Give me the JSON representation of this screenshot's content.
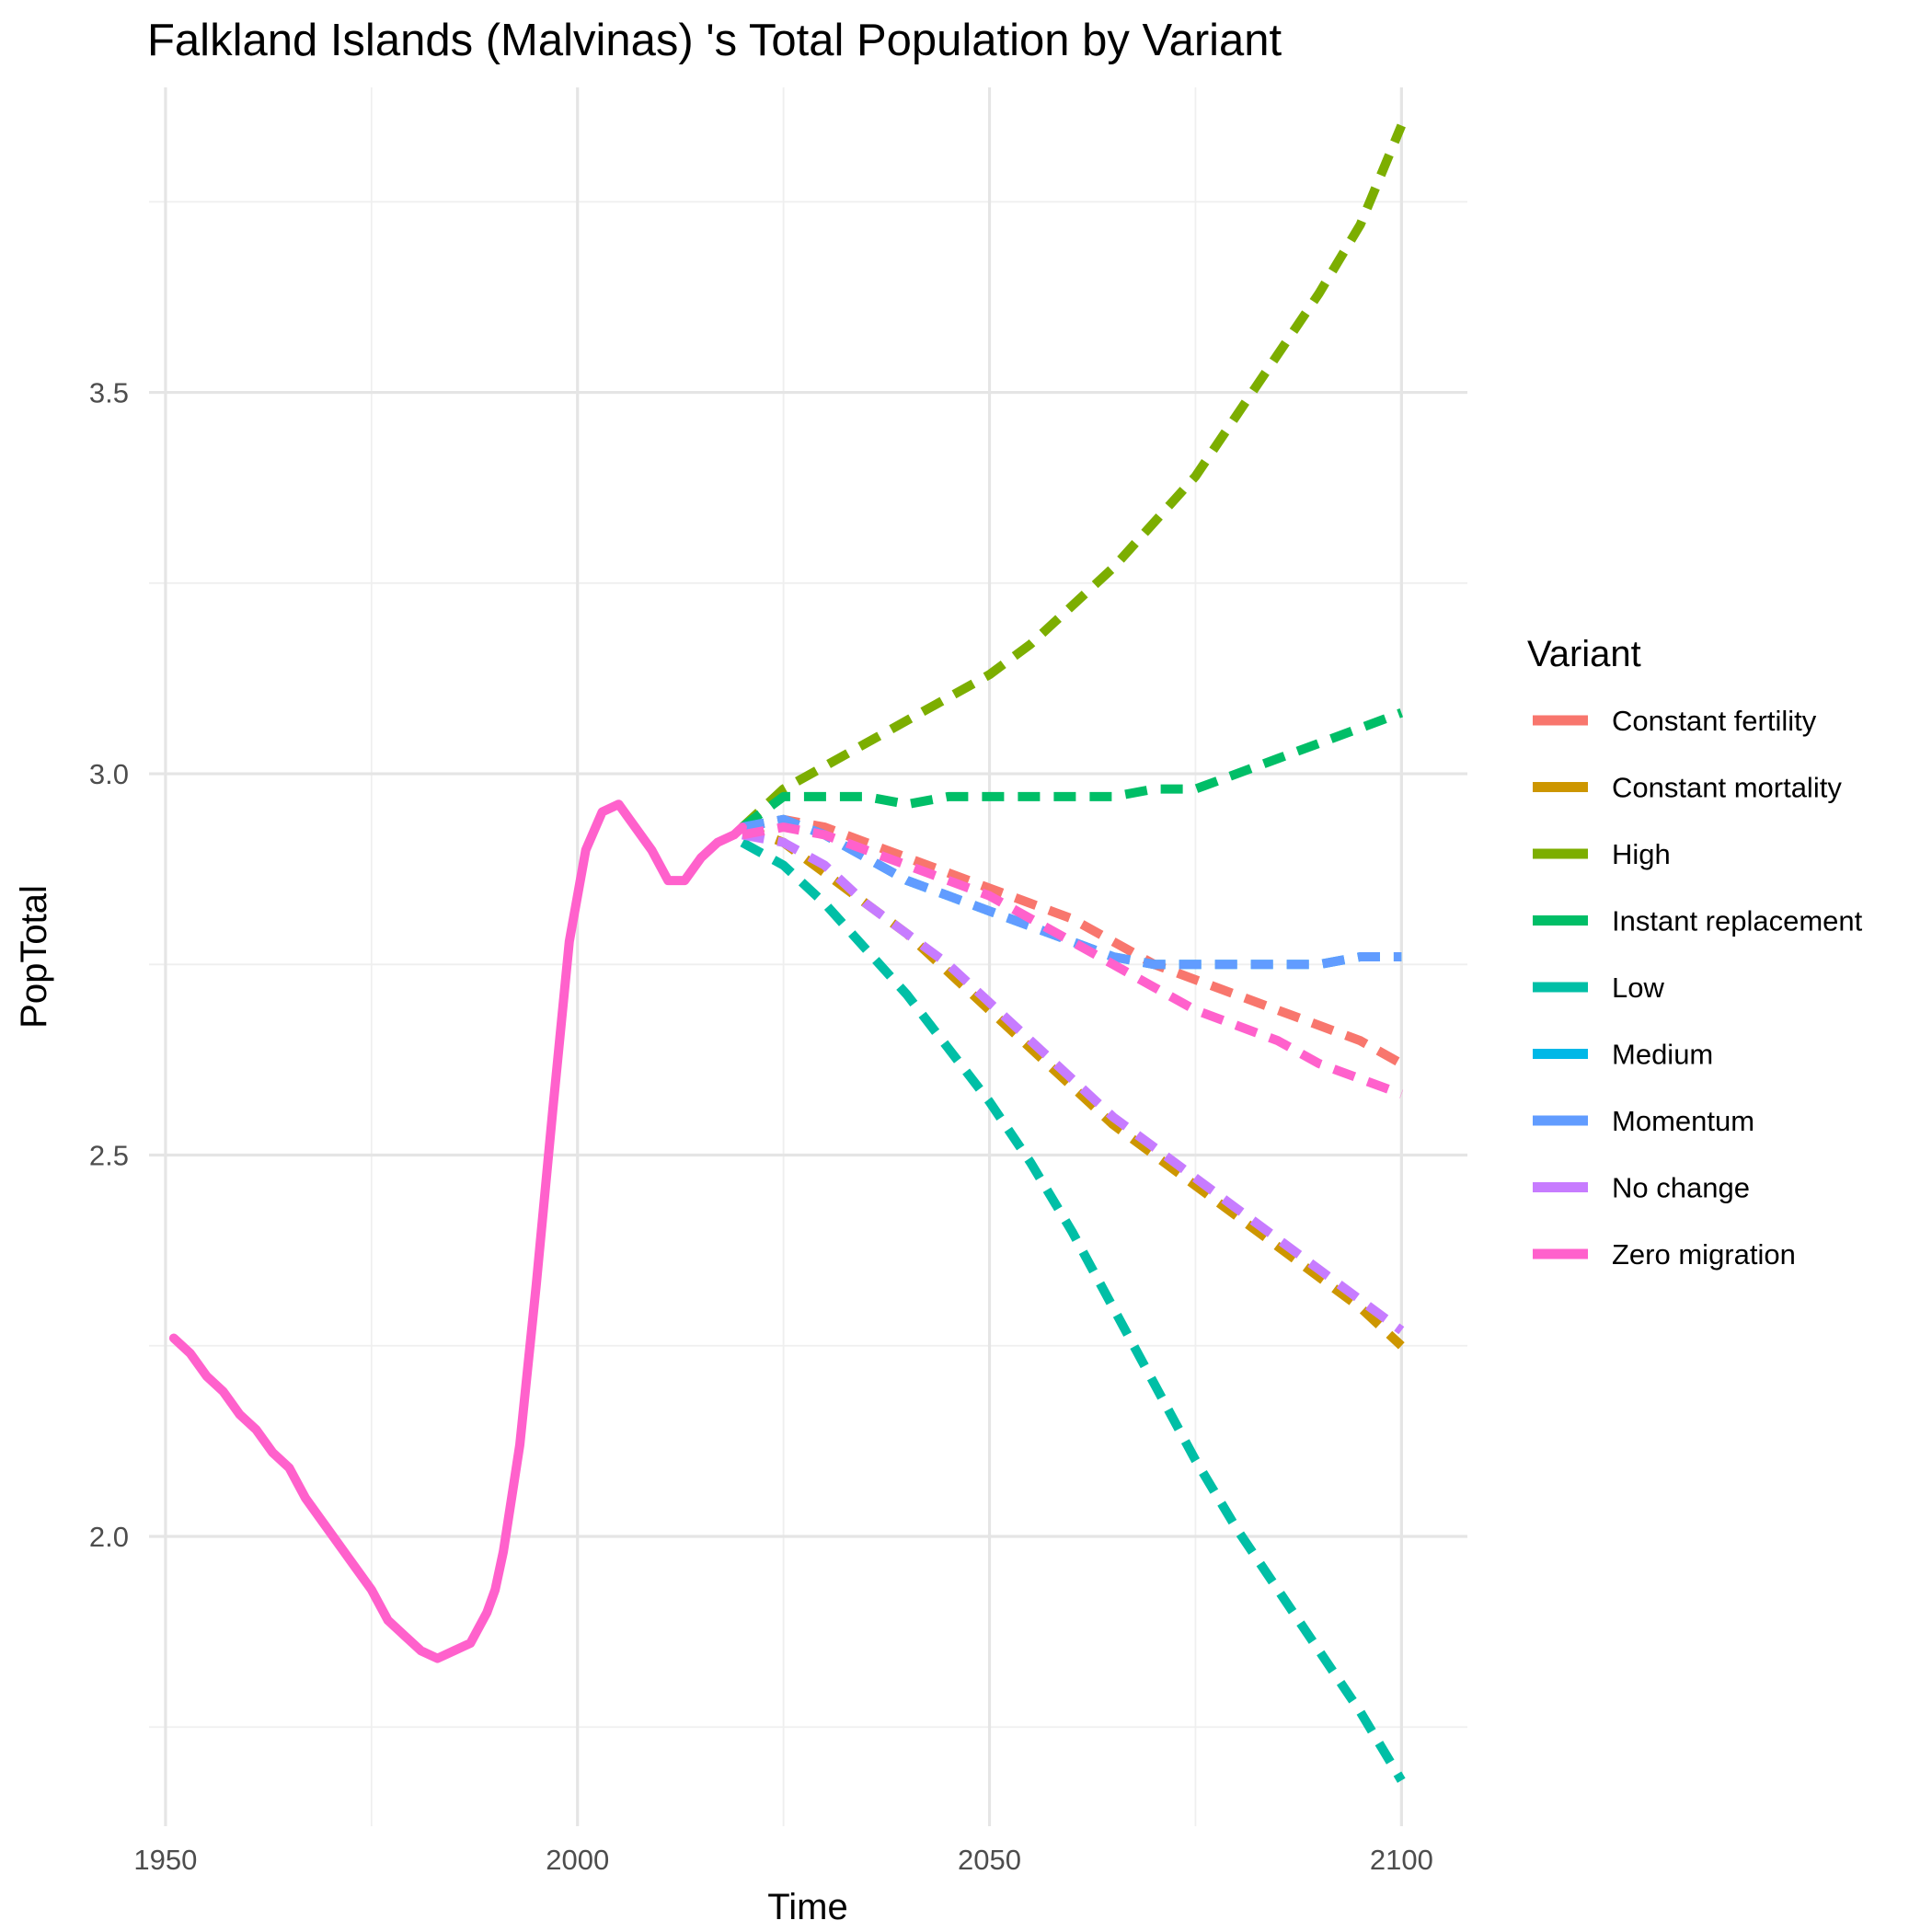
{
  "chart_data": {
    "type": "line",
    "title": "Falkland Islands (Malvinas) 's Total Population by Variant",
    "xlabel": "Time",
    "ylabel": "PopTotal",
    "xlim": [
      1948,
      2108
    ],
    "ylim": [
      1.62,
      3.9
    ],
    "x_ticks": [
      1950,
      2000,
      2050,
      2100
    ],
    "x_tick_labels": [
      "1950",
      "2000",
      "2050",
      "2100"
    ],
    "y_ticks": [
      2.0,
      2.5,
      3.0,
      3.5
    ],
    "y_tick_labels": [
      "2.0",
      "2.5",
      "3.0",
      "3.5"
    ],
    "grid": true,
    "legend": {
      "title": "Variant",
      "position": "right"
    },
    "historical": {
      "variant": "Zero migration",
      "x": [
        1951,
        1953,
        1955,
        1957,
        1959,
        1961,
        1963,
        1965,
        1967,
        1969,
        1971,
        1973,
        1975,
        1977,
        1979,
        1981,
        1983,
        1985,
        1987,
        1989,
        1990,
        1991,
        1993,
        1995,
        1997,
        1999,
        2001,
        2003,
        2005,
        2007,
        2009,
        2011,
        2013,
        2015,
        2017,
        2019,
        2020
      ],
      "y": [
        2.26,
        2.24,
        2.21,
        2.19,
        2.16,
        2.14,
        2.11,
        2.09,
        2.05,
        2.02,
        1.99,
        1.96,
        1.93,
        1.89,
        1.87,
        1.85,
        1.84,
        1.85,
        1.86,
        1.9,
        1.93,
        1.98,
        2.12,
        2.33,
        2.56,
        2.78,
        2.9,
        2.95,
        2.96,
        2.93,
        2.9,
        2.86,
        2.86,
        2.89,
        2.91,
        2.92,
        2.93
      ]
    },
    "x": [
      2020,
      2025,
      2030,
      2035,
      2040,
      2045,
      2050,
      2055,
      2060,
      2065,
      2070,
      2075,
      2080,
      2085,
      2090,
      2095,
      2100
    ],
    "series": [
      {
        "name": "Constant fertility",
        "color": "#F8766D",
        "values": [
          2.93,
          2.94,
          2.93,
          2.91,
          2.89,
          2.87,
          2.85,
          2.83,
          2.81,
          2.78,
          2.75,
          2.73,
          2.71,
          2.69,
          2.67,
          2.65,
          2.62
        ]
      },
      {
        "name": "Constant mortality",
        "color": "#CD9600",
        "values": [
          2.93,
          2.91,
          2.87,
          2.83,
          2.79,
          2.74,
          2.69,
          2.64,
          2.59,
          2.54,
          2.5,
          2.46,
          2.42,
          2.38,
          2.34,
          2.3,
          2.25
        ]
      },
      {
        "name": "High",
        "color": "#7CAE00",
        "values": [
          2.93,
          2.98,
          3.01,
          3.04,
          3.07,
          3.1,
          3.13,
          3.17,
          3.22,
          3.27,
          3.33,
          3.39,
          3.47,
          3.55,
          3.63,
          3.72,
          3.85
        ]
      },
      {
        "name": "Instant replacement",
        "color": "#00BE67",
        "values": [
          2.93,
          2.97,
          2.97,
          2.97,
          2.96,
          2.97,
          2.97,
          2.97,
          2.97,
          2.97,
          2.98,
          2.98,
          3.0,
          3.02,
          3.04,
          3.06,
          3.08
        ]
      },
      {
        "name": "Low",
        "color": "#00BFA6",
        "values": [
          2.91,
          2.88,
          2.83,
          2.77,
          2.71,
          2.64,
          2.57,
          2.49,
          2.4,
          2.3,
          2.2,
          2.1,
          2.01,
          1.93,
          1.85,
          1.77,
          1.68
        ]
      },
      {
        "name": "Medium",
        "color": "#00B8E7",
        "values": [
          2.93,
          2.94,
          2.92,
          2.89,
          2.86,
          2.84,
          2.82,
          2.8,
          2.78,
          2.76,
          2.75,
          2.75,
          2.75,
          2.75,
          2.75,
          2.76,
          2.76
        ]
      },
      {
        "name": "Momentum",
        "color": "#619CFF",
        "values": [
          2.93,
          2.94,
          2.92,
          2.89,
          2.86,
          2.84,
          2.82,
          2.8,
          2.78,
          2.76,
          2.75,
          2.75,
          2.75,
          2.75,
          2.75,
          2.76,
          2.76
        ]
      },
      {
        "name": "No change",
        "color": "#C77CFF",
        "values": [
          2.92,
          2.91,
          2.88,
          2.83,
          2.79,
          2.75,
          2.7,
          2.65,
          2.6,
          2.55,
          2.51,
          2.47,
          2.43,
          2.39,
          2.35,
          2.31,
          2.27
        ]
      },
      {
        "name": "Zero migration",
        "color": "#FF61CC",
        "values": [
          2.92,
          2.93,
          2.92,
          2.9,
          2.88,
          2.86,
          2.84,
          2.81,
          2.78,
          2.75,
          2.72,
          2.69,
          2.67,
          2.65,
          2.62,
          2.6,
          2.58
        ]
      }
    ]
  }
}
